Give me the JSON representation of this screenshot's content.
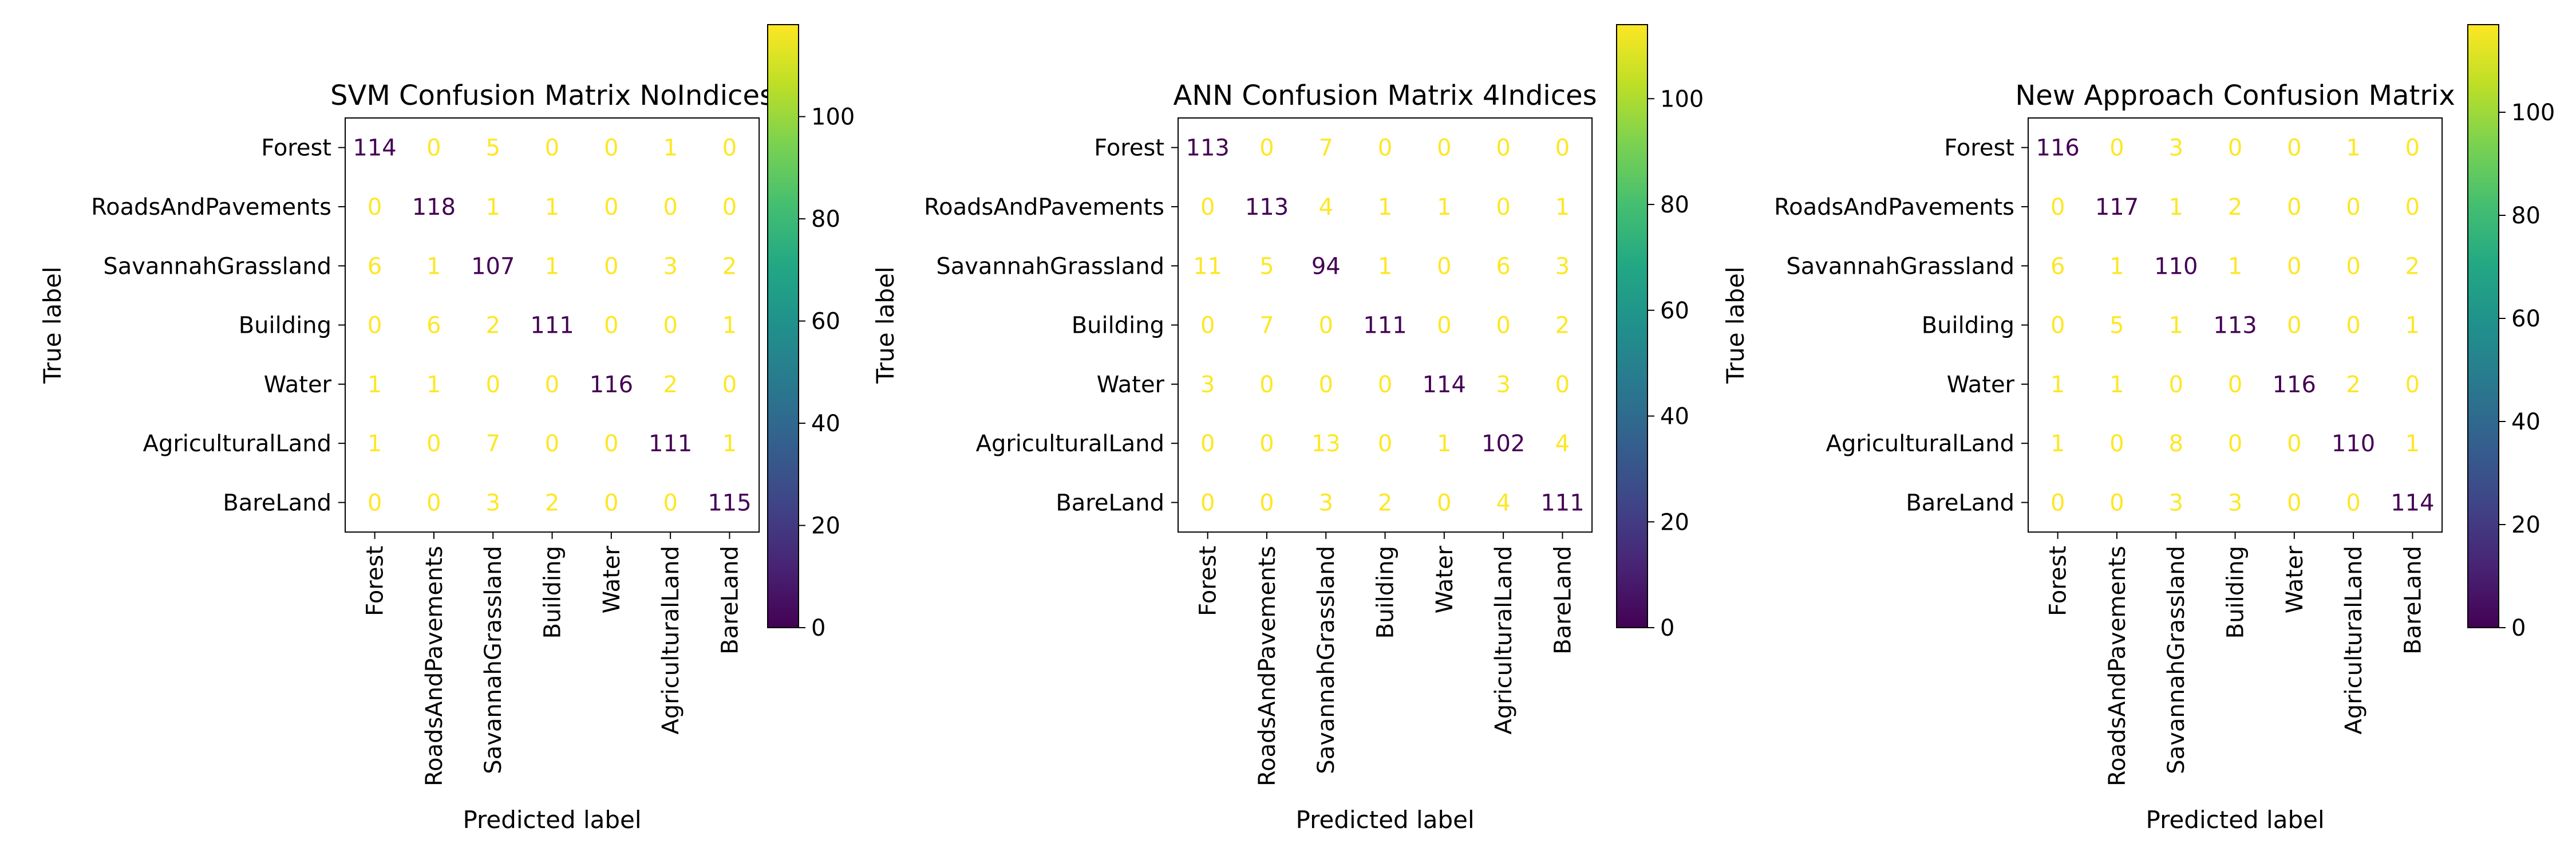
{
  "chart_data": [
    {
      "type": "heatmap",
      "title": "SVM Confusion Matrix NoIndices",
      "xlabel": "Predicted label",
      "ylabel": "True label",
      "categories": [
        "Forest",
        "RoadsAndPavements",
        "SavannahGrassland",
        "Building",
        "Water",
        "AgriculturalLand",
        "BareLand"
      ],
      "matrix": [
        [
          114,
          0,
          5,
          0,
          0,
          1,
          0
        ],
        [
          0,
          118,
          1,
          1,
          0,
          0,
          0
        ],
        [
          6,
          1,
          107,
          1,
          0,
          3,
          2
        ],
        [
          0,
          6,
          2,
          111,
          0,
          0,
          1
        ],
        [
          1,
          1,
          0,
          0,
          116,
          2,
          0
        ],
        [
          1,
          0,
          7,
          0,
          0,
          111,
          1
        ],
        [
          0,
          0,
          3,
          2,
          0,
          0,
          115
        ]
      ],
      "colorbar": {
        "min": 0,
        "max": 118,
        "ticks": [
          0,
          20,
          40,
          60,
          80,
          100
        ]
      },
      "colormap": "viridis"
    },
    {
      "type": "heatmap",
      "title": "ANN Confusion Matrix 4Indices",
      "xlabel": "Predicted label",
      "ylabel": "True label",
      "categories": [
        "Forest",
        "RoadsAndPavements",
        "SavannahGrassland",
        "Building",
        "Water",
        "AgriculturalLand",
        "BareLand"
      ],
      "matrix": [
        [
          113,
          0,
          7,
          0,
          0,
          0,
          0
        ],
        [
          0,
          113,
          4,
          1,
          1,
          0,
          1
        ],
        [
          11,
          5,
          94,
          1,
          0,
          6,
          3
        ],
        [
          0,
          7,
          0,
          111,
          0,
          0,
          2
        ],
        [
          3,
          0,
          0,
          0,
          114,
          3,
          0
        ],
        [
          0,
          0,
          13,
          0,
          1,
          102,
          4
        ],
        [
          0,
          0,
          3,
          2,
          0,
          4,
          111
        ]
      ],
      "colorbar": {
        "min": 0,
        "max": 114,
        "ticks": [
          0,
          20,
          40,
          60,
          80,
          100
        ]
      },
      "colormap": "viridis"
    },
    {
      "type": "heatmap",
      "title": "New Approach Confusion Matrix",
      "xlabel": "Predicted label",
      "ylabel": "True label",
      "categories": [
        "Forest",
        "RoadsAndPavements",
        "SavannahGrassland",
        "Building",
        "Water",
        "AgriculturalLand",
        "BareLand"
      ],
      "matrix": [
        [
          116,
          0,
          3,
          0,
          0,
          1,
          0
        ],
        [
          0,
          117,
          1,
          2,
          0,
          0,
          0
        ],
        [
          6,
          1,
          110,
          1,
          0,
          0,
          2
        ],
        [
          0,
          5,
          1,
          113,
          0,
          0,
          1
        ],
        [
          1,
          1,
          0,
          0,
          116,
          2,
          0
        ],
        [
          1,
          0,
          8,
          0,
          0,
          110,
          1
        ],
        [
          0,
          0,
          3,
          3,
          0,
          0,
          114
        ]
      ],
      "colorbar": {
        "min": 0,
        "max": 117,
        "ticks": [
          0,
          20,
          40,
          60,
          80,
          100
        ]
      },
      "colormap": "viridis"
    }
  ]
}
